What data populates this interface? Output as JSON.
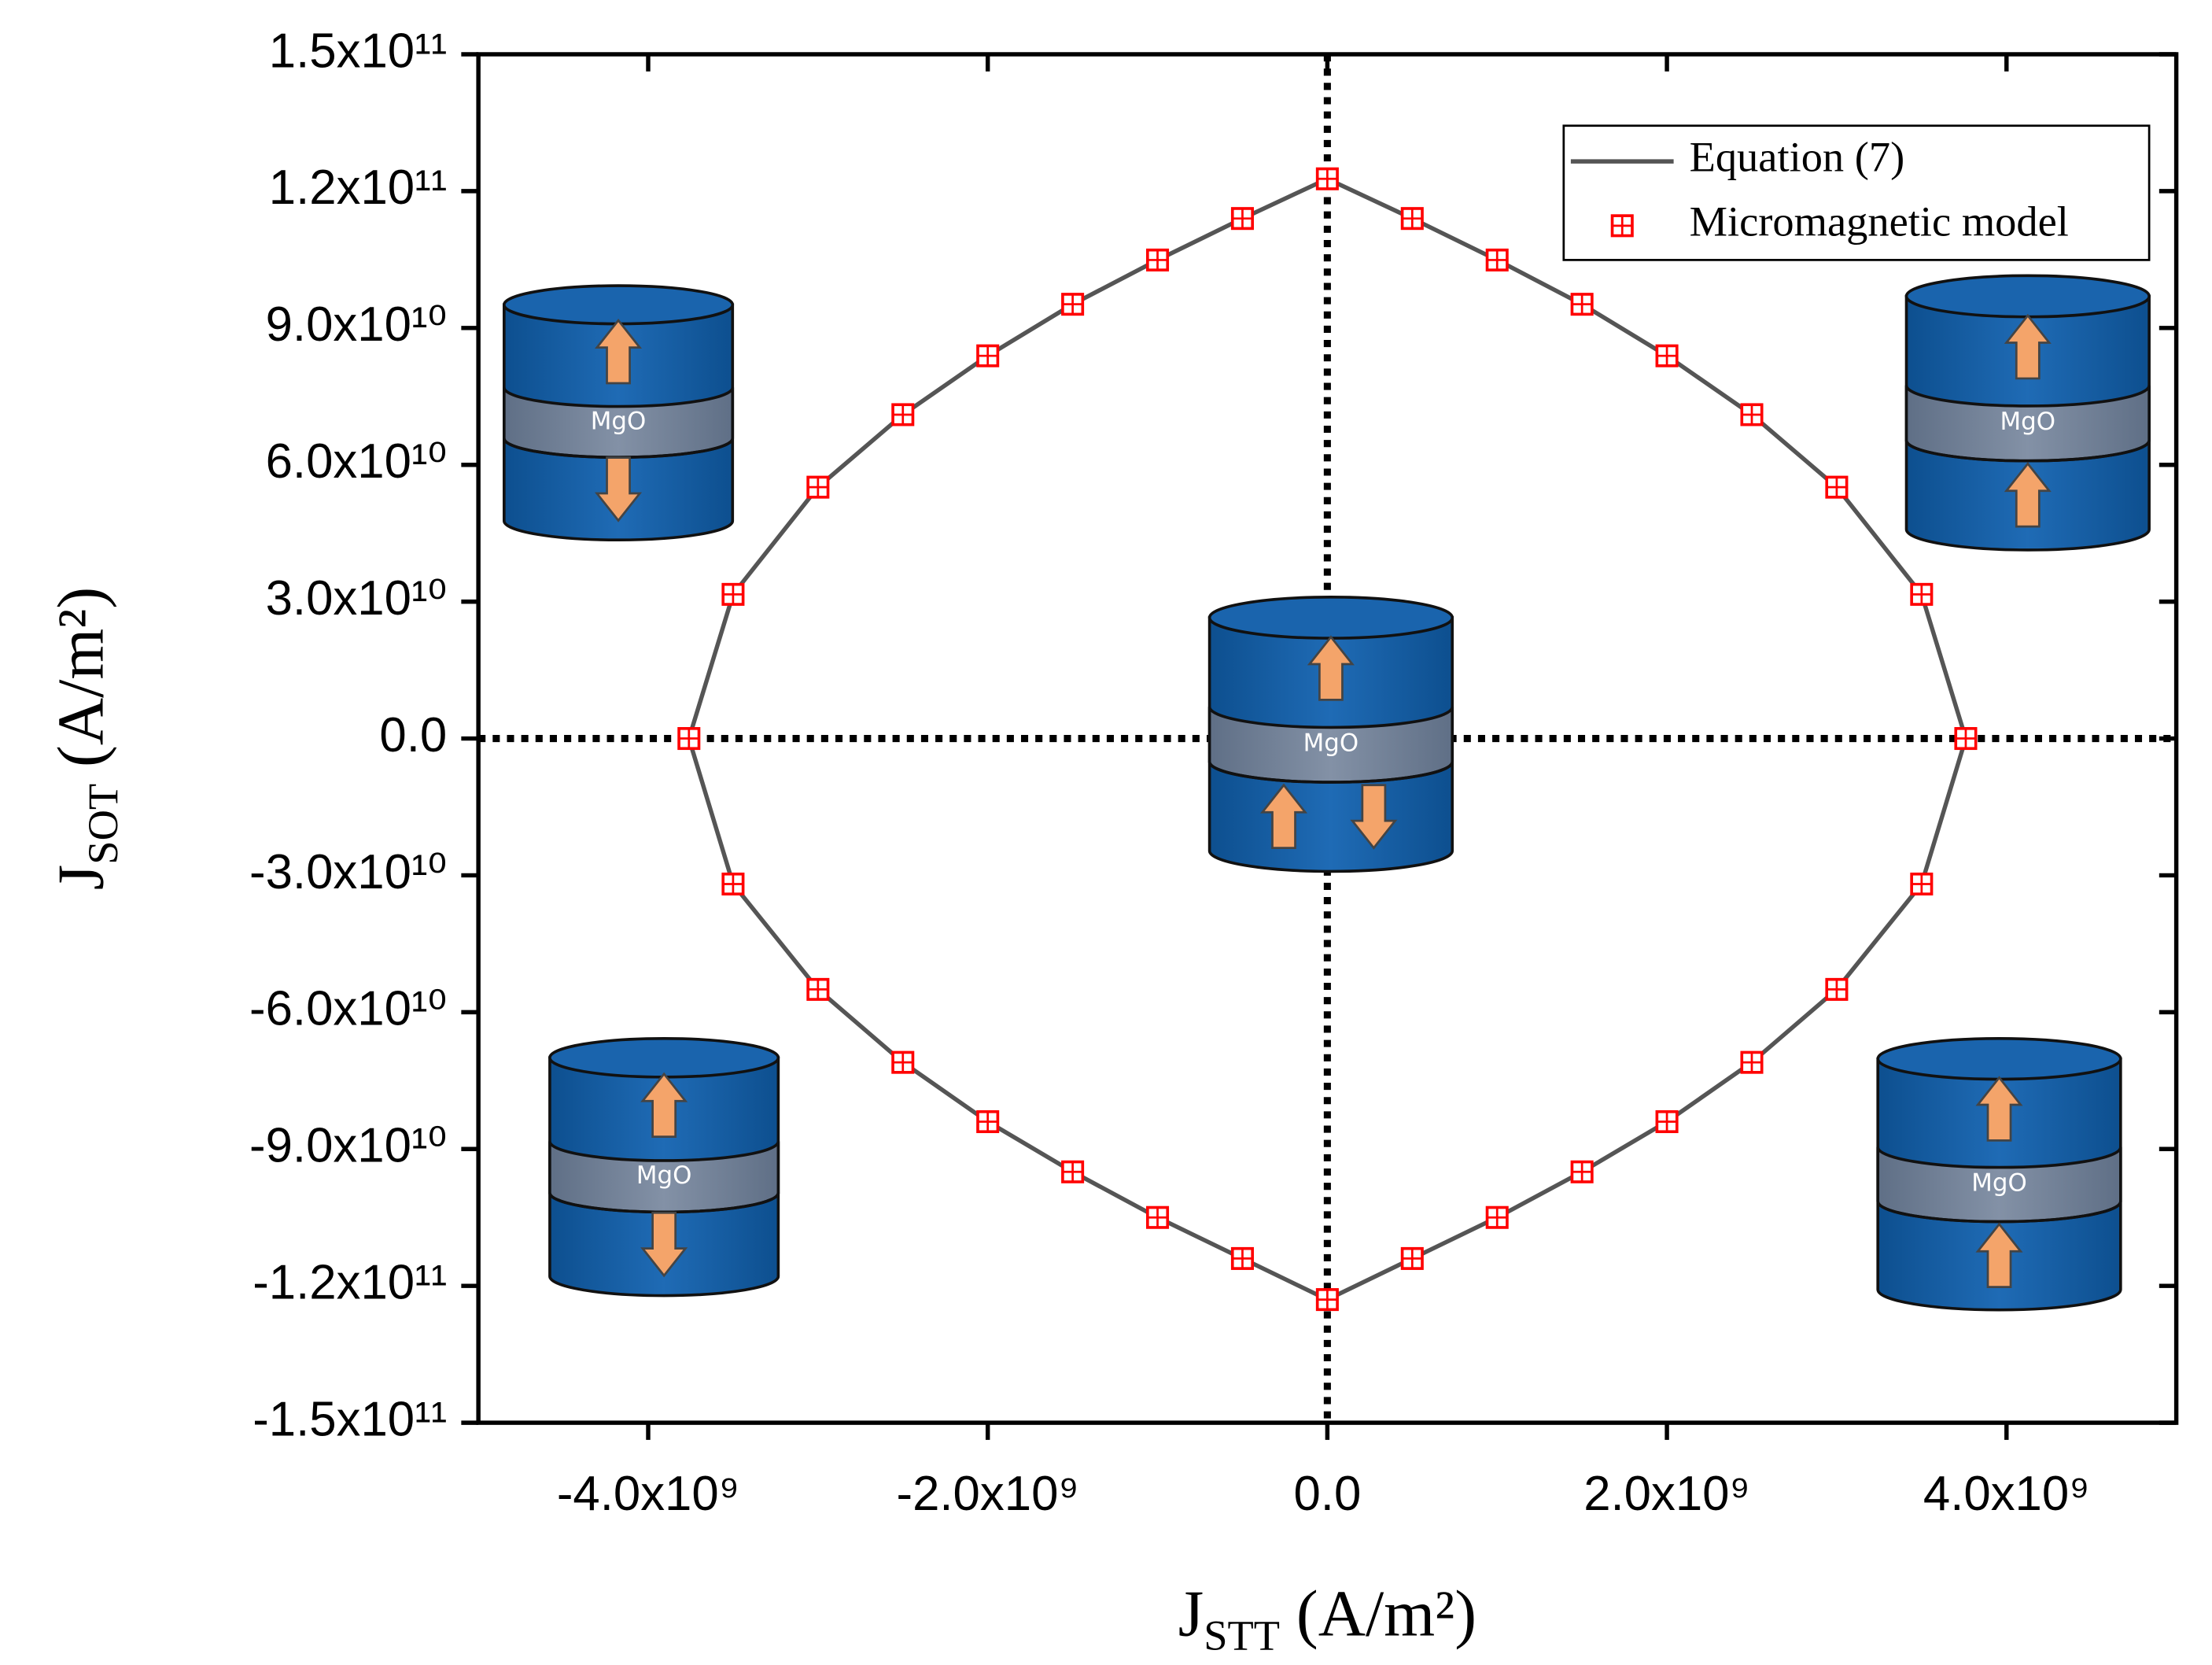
{
  "chart_data": {
    "type": "line_scatter",
    "x_label": {
      "symbol": "J",
      "subscript": "STT",
      "unit": " (A/m²)"
    },
    "y_label": {
      "symbol": "J",
      "subscript": "SOT",
      "unit": " (A/m²)"
    },
    "xlim": [
      -5000000000,
      5000000000
    ],
    "xticks": [
      {
        "value": -4000000000,
        "label": "-4.0x10⁹"
      },
      {
        "value": -2000000000,
        "label": "-2.0x10⁹"
      },
      {
        "value": 0,
        "label": "0.0"
      },
      {
        "value": 2000000000,
        "label": "2.0x10⁹"
      },
      {
        "value": 4000000000,
        "label": "4.0x10⁹"
      }
    ],
    "ylim": [
      -150000000000,
      150000000000
    ],
    "yticks": [
      {
        "value": -150000000000,
        "label": "-1.5x10¹¹"
      },
      {
        "value": -120000000000,
        "label": "-1.2x10¹¹"
      },
      {
        "value": -90000000000,
        "label": "-9.0x10¹⁰"
      },
      {
        "value": -60000000000,
        "label": "-6.0x10¹⁰"
      },
      {
        "value": -30000000000,
        "label": "-3.0x10¹⁰"
      },
      {
        "value": 0,
        "label": "0.0"
      },
      {
        "value": 30000000000,
        "label": "3.0x10¹⁰"
      },
      {
        "value": 60000000000,
        "label": "6.0x10¹⁰"
      },
      {
        "value": 90000000000,
        "label": "9.0x10¹⁰"
      },
      {
        "value": 120000000000,
        "label": "1.2x10¹¹"
      },
      {
        "value": 150000000000,
        "label": "1.5x10¹¹"
      }
    ],
    "legend": "upper right",
    "series": [
      {
        "name": "Equation (7)",
        "kind": "line",
        "color": "#555555",
        "x": [
          -3760000000,
          -3500000000,
          -3000000000,
          -2500000000,
          -2000000000,
          -1500000000,
          -1000000000,
          -500000000,
          0,
          500000000,
          1000000000,
          1500000000,
          2000000000,
          2500000000,
          3000000000,
          3500000000,
          3760000000,
          3500000000,
          3000000000,
          2500000000,
          2000000000,
          1500000000,
          1000000000,
          500000000,
          0,
          -500000000,
          -1000000000,
          -1500000000,
          -2000000000,
          -2500000000,
          -3000000000,
          -3500000000,
          -3760000000
        ],
        "values": [
          0,
          31600000000,
          55100000000,
          71000000000,
          83900000000,
          95200000000,
          104900000000,
          114000000000,
          122700000000,
          114000000000,
          104900000000,
          95200000000,
          83900000000,
          71000000000,
          55100000000,
          31600000000,
          0,
          -31900000000,
          -55000000000,
          -71000000000,
          -84000000000,
          -95000000000,
          -105000000000,
          -114000000000,
          -123000000000,
          -114000000000,
          -105000000000,
          -95000000000,
          -84000000000,
          -71000000000,
          -55000000000,
          -31900000000,
          0
        ]
      },
      {
        "name": "Micromagnetic model",
        "kind": "marker",
        "color": "#ff0000",
        "x": [
          -3760000000,
          -3500000000,
          -3000000000,
          -2500000000,
          -2000000000,
          -1500000000,
          -1000000000,
          -500000000,
          0,
          500000000,
          1000000000,
          1500000000,
          2000000000,
          2500000000,
          3000000000,
          3500000000,
          3760000000,
          3500000000,
          3000000000,
          2500000000,
          2000000000,
          1500000000,
          1000000000,
          500000000,
          0,
          -500000000,
          -1000000000,
          -1500000000,
          -2000000000,
          -2500000000,
          -3000000000,
          -3500000000
        ],
        "values": [
          0,
          31600000000,
          55100000000,
          71000000000,
          83900000000,
          95200000000,
          104900000000,
          114000000000,
          122700000000,
          114000000000,
          104900000000,
          95200000000,
          83900000000,
          71000000000,
          55100000000,
          31600000000,
          0,
          -31900000000,
          -55000000000,
          -71000000000,
          -84000000000,
          -95000000000,
          -105000000000,
          -114000000000,
          -123000000000,
          -114000000000,
          -105000000000,
          -95000000000,
          -84000000000,
          -71000000000,
          -55000000000,
          -31900000000
        ]
      }
    ],
    "illustrations": [
      {
        "label": "MgO"
      },
      {
        "label": "MgO"
      },
      {
        "label": "MgO"
      },
      {
        "label": "MgO"
      },
      {
        "label": "MgO"
      }
    ]
  }
}
